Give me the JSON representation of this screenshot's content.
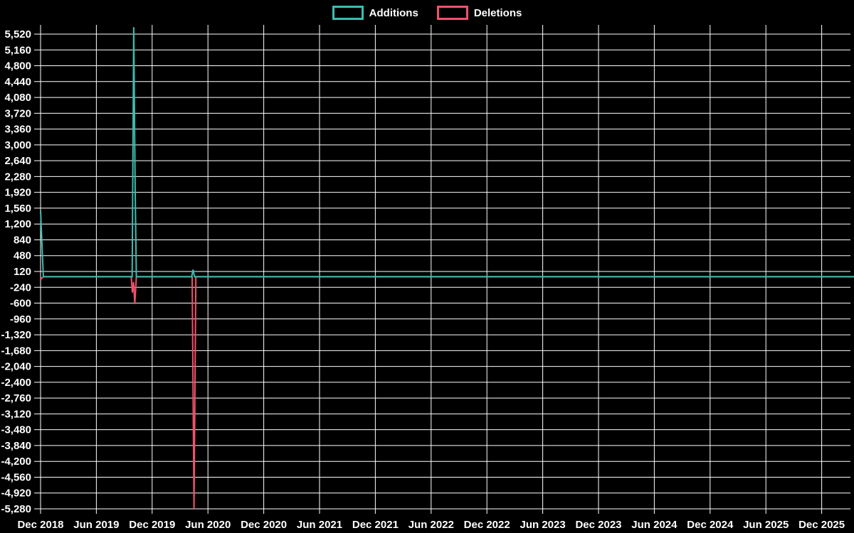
{
  "colors": {
    "background": "#000000",
    "grid": "#ffffff",
    "text": "#ffffff",
    "additions": "#3dbcb2",
    "deletions": "#f0526b"
  },
  "legend": {
    "items": [
      {
        "id": "additions",
        "label": "Additions",
        "color": "#3dbcb2"
      },
      {
        "id": "deletions",
        "label": "Deletions",
        "color": "#f0526b"
      }
    ]
  },
  "chart_data": {
    "type": "line",
    "title": "",
    "xlabel": "",
    "ylabel": "",
    "grid": true,
    "legend_position": "top-center",
    "x_axis": {
      "start": "Dec 2018",
      "months_per_tick": 6,
      "tick_labels": [
        "Dec 2018",
        "Jun 2019",
        "Dec 2019",
        "Jun 2020",
        "Dec 2020",
        "Jun 2021",
        "Dec 2021",
        "Jun 2022",
        "Dec 2022",
        "Jun 2023",
        "Dec 2023",
        "Jun 2024",
        "Dec 2024",
        "Jun 2025",
        "Dec 2025"
      ]
    },
    "y_axis": {
      "min": -5280,
      "max": 5520,
      "step": 360,
      "tick_labels": [
        "5,520",
        "5,160",
        "4,800",
        "4,440",
        "4,080",
        "3,720",
        "3,360",
        "3,000",
        "2,640",
        "2,280",
        "1,920",
        "1,560",
        "1,200",
        "840",
        "480",
        "120",
        "-240",
        "-600",
        "-960",
        "-1,320",
        "-1,680",
        "-2,040",
        "-2,400",
        "-2,760",
        "-3,120",
        "-3,480",
        "-3,840",
        "-4,200",
        "-4,560",
        "-4,920",
        "-5,280"
      ]
    },
    "series": [
      {
        "name": "Additions",
        "color": "#3dbcb2",
        "note": "x = months after Dec 2018; flat at 0 except spikes at Dec 2018 (~+1,500), Oct 2019 (~+5,680 peak, ~+2,000 next week) and Apr 2020 (~+160)",
        "points": [
          [
            0,
            1500
          ],
          [
            0.3,
            0
          ],
          [
            9.85,
            0
          ],
          [
            10.02,
            5680
          ],
          [
            10.17,
            2000
          ],
          [
            10.3,
            0
          ],
          [
            16.25,
            0
          ],
          [
            16.4,
            160
          ],
          [
            16.55,
            0
          ],
          [
            87.5,
            0
          ]
        ]
      },
      {
        "name": "Deletions",
        "color": "#f0526b",
        "note": "x = months after Dec 2018; flat at 0 except dips at Dec 2018 (~-60), Oct 2019 (~-360 then ~-620) and Apr 2020 (~-5,280)",
        "points": [
          [
            0,
            -60
          ],
          [
            0.3,
            0
          ],
          [
            9.75,
            0
          ],
          [
            9.87,
            -360
          ],
          [
            10.0,
            -120
          ],
          [
            10.13,
            -620
          ],
          [
            10.3,
            0
          ],
          [
            16.3,
            0
          ],
          [
            16.5,
            -5280
          ],
          [
            16.7,
            0
          ],
          [
            87.5,
            0
          ]
        ]
      }
    ]
  }
}
